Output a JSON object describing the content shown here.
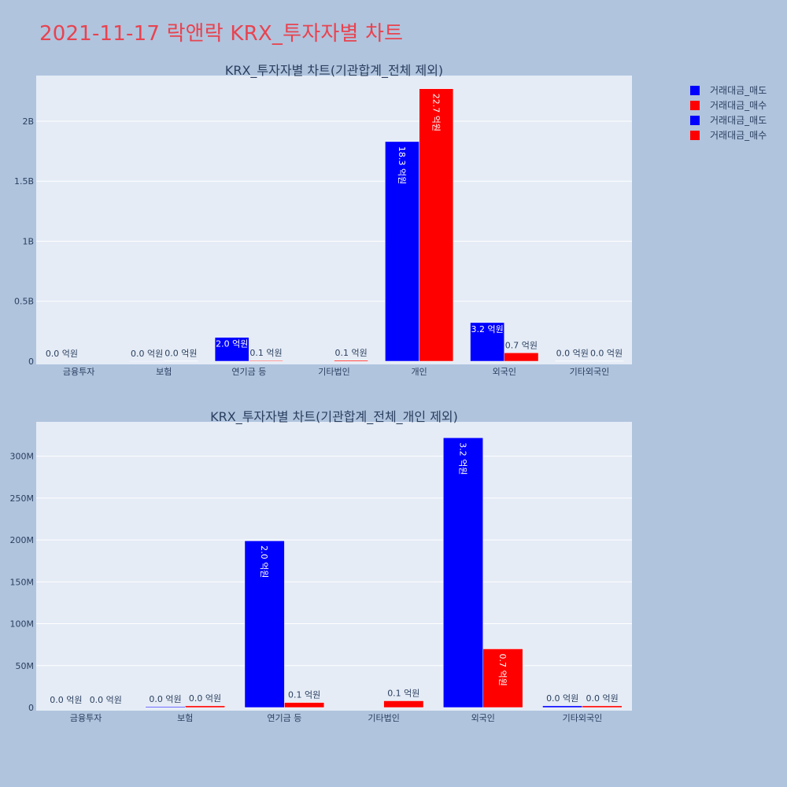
{
  "page": {
    "title": "2021-11-17 락앤락 KRX_투자자별 차트"
  },
  "colors": {
    "sell": "#0000ff",
    "buy": "#ff0000",
    "plot_bg": "#e5ecf6",
    "paper_bg": "#b0c4de",
    "title": "#e8434f"
  },
  "legend": {
    "placement": "top-right",
    "items": [
      {
        "label": "거래대금_매도",
        "color": "#0000ff"
      },
      {
        "label": "거래대금_매수",
        "color": "#ff0000"
      },
      {
        "label": "거래대금_매도",
        "color": "#0000ff"
      },
      {
        "label": "거래대금_매수",
        "color": "#ff0000"
      }
    ]
  },
  "chart_data": [
    {
      "type": "bar",
      "title": "KRX_투자자별 차트(기관합계_전체 제외)",
      "categories": [
        "금융투자",
        "보험",
        "연기금 등",
        "기타법인",
        "개인",
        "외국인",
        "기타외국인"
      ],
      "series": [
        {
          "name": "거래대금_매도",
          "values": [
            0,
            1000000,
            199000000,
            0,
            1830000000,
            322000000,
            2000000
          ],
          "labels": [
            "0.0 억원",
            "0.0 억원",
            "2.0 억원",
            "",
            "18.3 억원",
            "3.2 억원",
            "0.0 억원"
          ]
        },
        {
          "name": "거래대금_매수",
          "values": [
            0,
            2000000,
            6000000,
            8000000,
            2270000000,
            70000000,
            2000000
          ],
          "labels": [
            "",
            "0.0 억원",
            "0.1 억원",
            "0.1 억원",
            "22.7 억원",
            "0.7 억원",
            "0.0 억원"
          ]
        }
      ],
      "ylim": [
        0,
        2380000000
      ],
      "yticks": [
        0,
        500000000,
        1000000000,
        1500000000,
        2000000000
      ],
      "ytick_labels": [
        "0",
        "0.5B",
        "1B",
        "1.5B",
        "2B"
      ],
      "grid": true
    },
    {
      "type": "bar",
      "title": "KRX_투자자별 차트(기관합계_전체_개인 제외)",
      "categories": [
        "금융투자",
        "보험",
        "연기금 등",
        "기타법인",
        "외국인",
        "기타외국인"
      ],
      "series": [
        {
          "name": "거래대금_매도",
          "values": [
            0,
            1000000,
            199000000,
            0,
            322000000,
            2000000
          ],
          "labels": [
            "0.0 억원",
            "0.0 억원",
            "2.0 억원",
            "",
            "3.2 억원",
            "0.0 억원"
          ]
        },
        {
          "name": "거래대금_매수",
          "values": [
            0,
            2000000,
            6000000,
            8000000,
            70000000,
            2000000
          ],
          "labels": [
            "0.0 억원",
            "0.0 억원",
            "0.1 억원",
            "0.1 억원",
            "0.7 억원",
            "0.0 억원"
          ]
        }
      ],
      "ylim": [
        0,
        341000000
      ],
      "yticks": [
        0,
        50000000,
        100000000,
        150000000,
        200000000,
        250000000,
        300000000
      ],
      "ytick_labels": [
        "0",
        "50M",
        "100M",
        "150M",
        "200M",
        "250M",
        "300M"
      ],
      "grid": true
    }
  ]
}
